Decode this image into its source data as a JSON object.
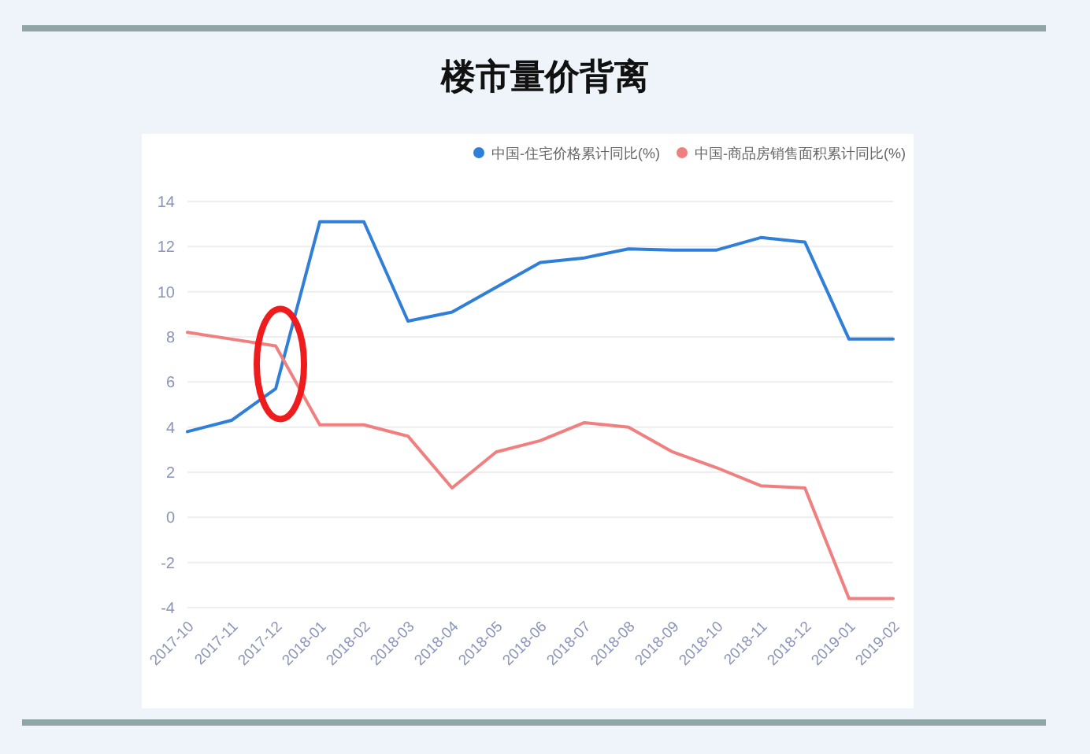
{
  "chart_data": {
    "type": "line",
    "title": "楼市量价背离",
    "categories": [
      "2017-10",
      "2017-11",
      "2017-12",
      "2018-01",
      "2018-02",
      "2018-03",
      "2018-04",
      "2018-05",
      "2018-06",
      "2018-07",
      "2018-08",
      "2018-09",
      "2018-10",
      "2018-11",
      "2018-12",
      "2019-01",
      "2019-02"
    ],
    "series": [
      {
        "name": "中国-住宅价格累计同比(%)",
        "color": "#2f7ed8",
        "values": [
          3.8,
          4.3,
          5.7,
          13.1,
          13.1,
          8.7,
          9.1,
          10.2,
          11.3,
          11.5,
          11.9,
          11.85,
          11.85,
          12.4,
          12.2,
          7.9,
          7.9
        ]
      },
      {
        "name": "中国-商品房销售面积累计同比(%)",
        "color": "#f08080",
        "values": [
          8.2,
          7.9,
          7.6,
          4.1,
          4.1,
          3.6,
          1.3,
          2.9,
          3.4,
          4.2,
          4.0,
          2.9,
          2.2,
          1.4,
          1.3,
          -3.6,
          -3.6
        ]
      }
    ],
    "ylim": [
      -4,
      14
    ],
    "yticks": [
      -4,
      -2,
      0,
      2,
      4,
      6,
      8,
      10,
      12,
      14
    ],
    "grid": "y",
    "legend": "top right",
    "marker": "none",
    "line_style": "solid"
  }
}
